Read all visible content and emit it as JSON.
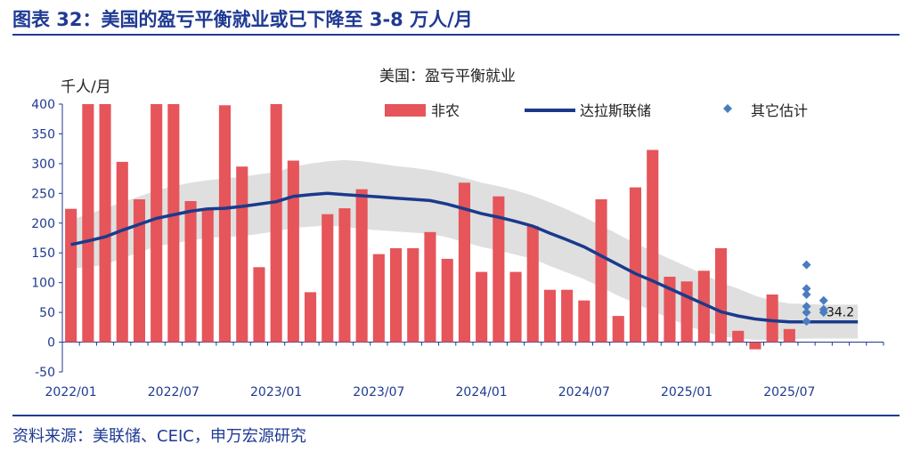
{
  "header": {
    "title": "图表 32：美国的盈亏平衡就业或已下降至 3-8 万人/月"
  },
  "footer": {
    "source": "资料来源：美联储、CEIC，申万宏源研究"
  },
  "colors": {
    "title": "#1f3a93",
    "bar": "#e5555a",
    "line": "#1b3a8c",
    "band": "#d9d9d9",
    "dot": "#4a7cc0",
    "axis": "#1f3a93"
  },
  "chart_data": {
    "type": "bar",
    "title": "美国：盈亏平衡就业",
    "ylabel": "千人/月",
    "ylim": [
      -50,
      400
    ],
    "yticks": [
      -50,
      0,
      50,
      100,
      150,
      200,
      250,
      300,
      350,
      400
    ],
    "xtick_labels": [
      {
        "label": "2022/01",
        "index": 0
      },
      {
        "label": "2022/07",
        "index": 6
      },
      {
        "label": "2023/01",
        "index": 12
      },
      {
        "label": "2023/07",
        "index": 18
      },
      {
        "label": "2024/01",
        "index": 24
      },
      {
        "label": "2024/07",
        "index": 30
      },
      {
        "label": "2025/01",
        "index": 36
      },
      {
        "label": "2025/07",
        "index": 42
      }
    ],
    "months": [
      "2022/01",
      "2022/02",
      "2022/03",
      "2022/04",
      "2022/05",
      "2022/06",
      "2022/07",
      "2022/08",
      "2022/09",
      "2022/10",
      "2022/11",
      "2022/12",
      "2023/01",
      "2023/02",
      "2023/03",
      "2023/04",
      "2023/05",
      "2023/06",
      "2023/07",
      "2023/08",
      "2023/09",
      "2023/10",
      "2023/11",
      "2023/12",
      "2024/01",
      "2024/02",
      "2024/03",
      "2024/04",
      "2024/05",
      "2024/06",
      "2024/07",
      "2024/08",
      "2024/09",
      "2024/10",
      "2024/11",
      "2024/12",
      "2025/01",
      "2025/02",
      "2025/03",
      "2025/04",
      "2025/05",
      "2025/06",
      "2025/07",
      "2025/08",
      "2025/09",
      "2025/10",
      "2025/11",
      "2025/12"
    ],
    "legend": {
      "bar": "非农",
      "line": "达拉斯联储",
      "dots": "其它估计"
    },
    "series": [
      {
        "name": "非农",
        "kind": "bar",
        "values": [
          224,
          400,
          400,
          303,
          240,
          400,
          400,
          237,
          225,
          398,
          295,
          126,
          400,
          305,
          84,
          215,
          225,
          257,
          148,
          158,
          158,
          185,
          140,
          268,
          118,
          245,
          118,
          195,
          88,
          88,
          70,
          240,
          44,
          260,
          323,
          110,
          102,
          120,
          158,
          19,
          -12,
          80,
          22
        ]
      },
      {
        "name": "达拉斯联储",
        "kind": "line",
        "values": [
          164,
          170,
          177,
          188,
          198,
          208,
          214,
          220,
          224,
          225,
          228,
          232,
          236,
          245,
          248,
          250,
          248,
          246,
          244,
          242,
          240,
          238,
          232,
          224,
          216,
          210,
          203,
          195,
          183,
          172,
          160,
          145,
          130,
          115,
          103,
          90,
          77,
          64,
          51,
          44,
          39,
          36,
          34,
          34,
          34,
          34.2,
          34.2
        ]
      },
      {
        "name": "band_upper",
        "kind": "band",
        "values": [
          205,
          215,
          225,
          235,
          245,
          255,
          262,
          268,
          272,
          275,
          278,
          282,
          286,
          295,
          300,
          304,
          306,
          304,
          300,
          296,
          293,
          289,
          283,
          276,
          268,
          262,
          255,
          246,
          235,
          223,
          210,
          196,
          181,
          166,
          153,
          140,
          127,
          114,
          100,
          90,
          78,
          70,
          65,
          64,
          63,
          63,
          63
        ]
      },
      {
        "name": "band_lower",
        "kind": "band",
        "values": [
          124,
          126,
          130,
          141,
          151,
          161,
          166,
          171,
          175,
          177,
          178,
          182,
          186,
          192,
          194,
          196,
          194,
          190,
          188,
          186,
          184,
          182,
          176,
          168,
          160,
          154,
          147,
          140,
          128,
          117,
          106,
          92,
          78,
          65,
          52,
          40,
          28,
          18,
          10,
          6,
          4,
          4,
          5,
          6,
          6,
          6,
          6
        ]
      },
      {
        "name": "其它估计",
        "kind": "dots",
        "points": [
          [
            43,
            130
          ],
          [
            43,
            90
          ],
          [
            43,
            80
          ],
          [
            43,
            60
          ],
          [
            43,
            50
          ],
          [
            43,
            35
          ],
          [
            44,
            70
          ],
          [
            44,
            55
          ],
          [
            44,
            50
          ]
        ]
      }
    ],
    "annotations": [
      {
        "text": "34.2",
        "index": 45,
        "value": 34.2
      }
    ]
  }
}
